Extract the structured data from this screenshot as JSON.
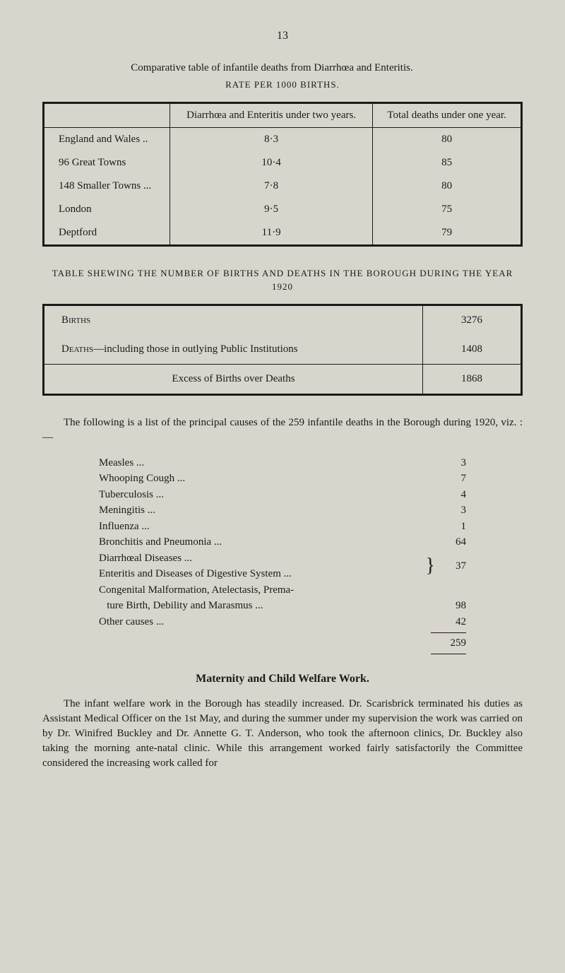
{
  "page_number": "13",
  "table1": {
    "intro": "Comparative table of infantile deaths from Diarrhœa and Enteritis.",
    "sub": "RATE PER 1000 BIRTHS.",
    "columns": [
      "",
      "Diarrhœa and Enteritis under two years.",
      "Total deaths under one year."
    ],
    "rows": [
      {
        "label": "England and Wales ..",
        "c1": "8·3",
        "c2": "80"
      },
      {
        "label": "96 Great Towns",
        "c1": "10·4",
        "c2": "85"
      },
      {
        "label": "148 Smaller Towns ...",
        "c1": "7·8",
        "c2": "80"
      },
      {
        "label": "London",
        "c1": "9·5",
        "c2": "75"
      },
      {
        "label": "Deptford",
        "c1": "11·9",
        "c2": "79"
      }
    ]
  },
  "table2": {
    "caption": "TABLE SHEWING THE NUMBER OF BIRTHS AND DEATHS IN THE BOROUGH DURING THE YEAR 1920",
    "rows": [
      {
        "label": "Births",
        "value": "3276"
      },
      {
        "label": "Deaths—including those in outlying Public Institutions",
        "value": "1408"
      }
    ],
    "excess": {
      "label": "Excess of Births over Deaths",
      "value": "1868"
    }
  },
  "para1": "The following is a list of the principal causes of the 259 infantile deaths in the Borough during 1920, viz. :—",
  "causes": {
    "simple": [
      {
        "label": "Measles",
        "value": "3"
      },
      {
        "label": "Whooping Cough",
        "value": "7"
      },
      {
        "label": "Tuberculosis",
        "value": "4"
      },
      {
        "label": "Meningitis",
        "value": "3"
      },
      {
        "label": "Influenza",
        "value": "1"
      },
      {
        "label": "Bronchitis and Pneumonia",
        "value": "64"
      }
    ],
    "braced": {
      "line1": "Diarrhœal Diseases",
      "line2": "Enteritis and Diseases of Digestive System",
      "value": "37"
    },
    "tail": [
      {
        "label": "Congenital Malformation, Atelectasis, Prema-",
        "value": ""
      },
      {
        "label": "   ture Birth, Debility and Marasmus",
        "value": "98"
      },
      {
        "label": "Other causes",
        "value": "42"
      }
    ],
    "total": "259"
  },
  "section_heading": "Maternity and Child Welfare Work.",
  "para2": "The infant welfare work in the Borough has steadily increased. Dr. Scarisbrick terminated his duties as Assistant Medical Officer on the 1st May, and during the summer under my supervision the work was carried on by Dr. Winifred Buckley and Dr. Annette G. T. Anderson, who took the afternoon clinics, Dr. Buckley also taking the morning ante-natal clinic. While this arrangement worked fairly satisfactorily the Committee considered the increasing work called for"
}
